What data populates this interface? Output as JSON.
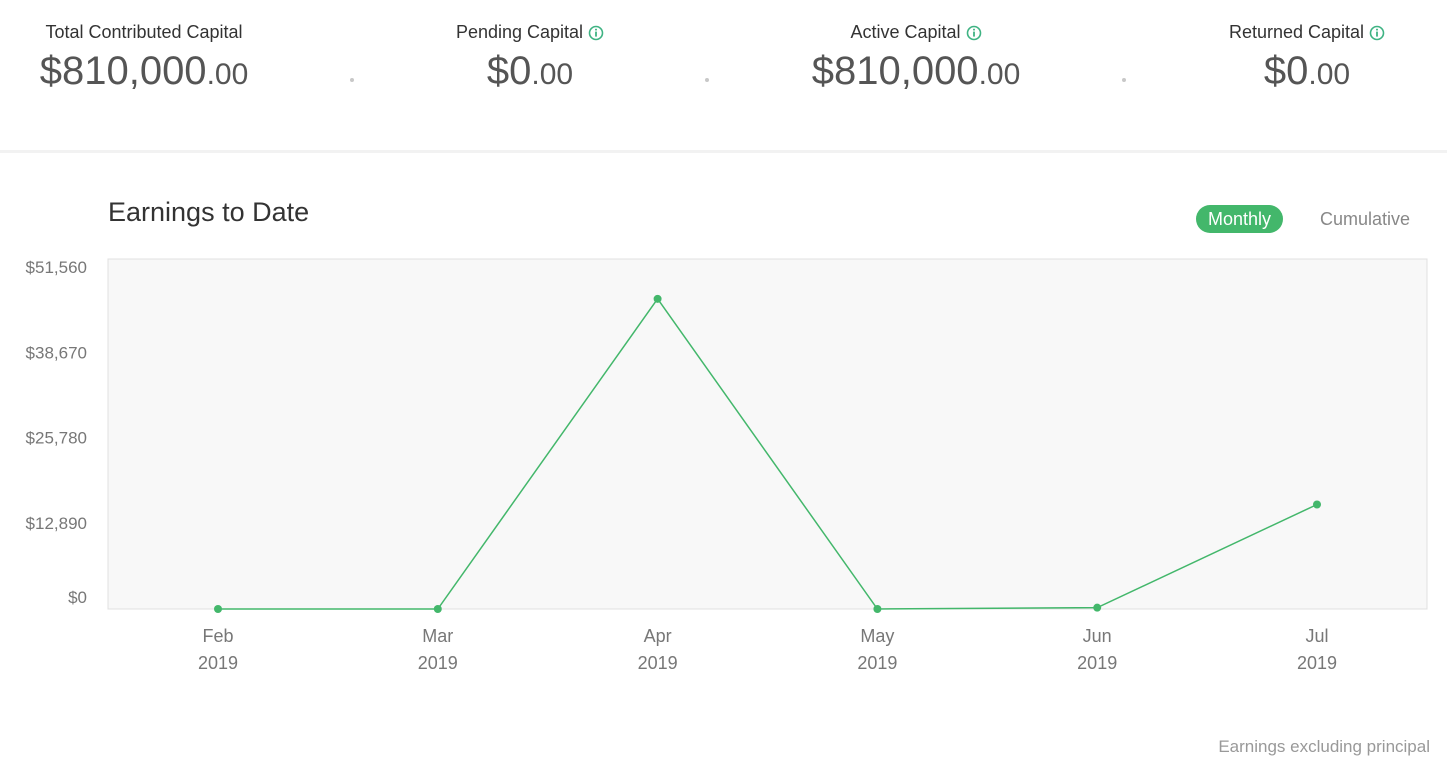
{
  "summary": {
    "total": {
      "label": "Total Contributed Capital",
      "whole": "$810,000",
      "cents": ".00"
    },
    "pending": {
      "label": "Pending Capital",
      "whole": "$0",
      "cents": ".00"
    },
    "active": {
      "label": "Active Capital",
      "whole": "$810,000",
      "cents": ".00"
    },
    "returned": {
      "label": "Returned Capital",
      "whole": "$0",
      "cents": ".00"
    }
  },
  "toggle": {
    "monthly": "Monthly",
    "cumulative": "Cumulative",
    "selected": "Monthly"
  },
  "footnote": "Earnings excluding principal",
  "colors": {
    "accent": "#43b76b",
    "plot_bg": "#f8f8f8",
    "info_icon": "#3fb383"
  },
  "chart_data": {
    "type": "line",
    "title": "Earnings to Date",
    "categories": [
      [
        "Feb",
        "2019"
      ],
      [
        "Mar",
        "2019"
      ],
      [
        "Apr",
        "2019"
      ],
      [
        "May",
        "2019"
      ],
      [
        "Jun",
        "2019"
      ],
      [
        "Jul",
        "2019"
      ]
    ],
    "series": [
      {
        "values": [
          0,
          0,
          46900,
          0,
          200,
          15800
        ]
      }
    ],
    "ylim": [
      0,
      51560
    ],
    "yticks": [
      "$51,560",
      "$38,670",
      "$25,780",
      "$12,890",
      "$0"
    ],
    "ytick_values": [
      51560,
      38670,
      25780,
      12890,
      0
    ],
    "xlabel": "",
    "ylabel": ""
  }
}
